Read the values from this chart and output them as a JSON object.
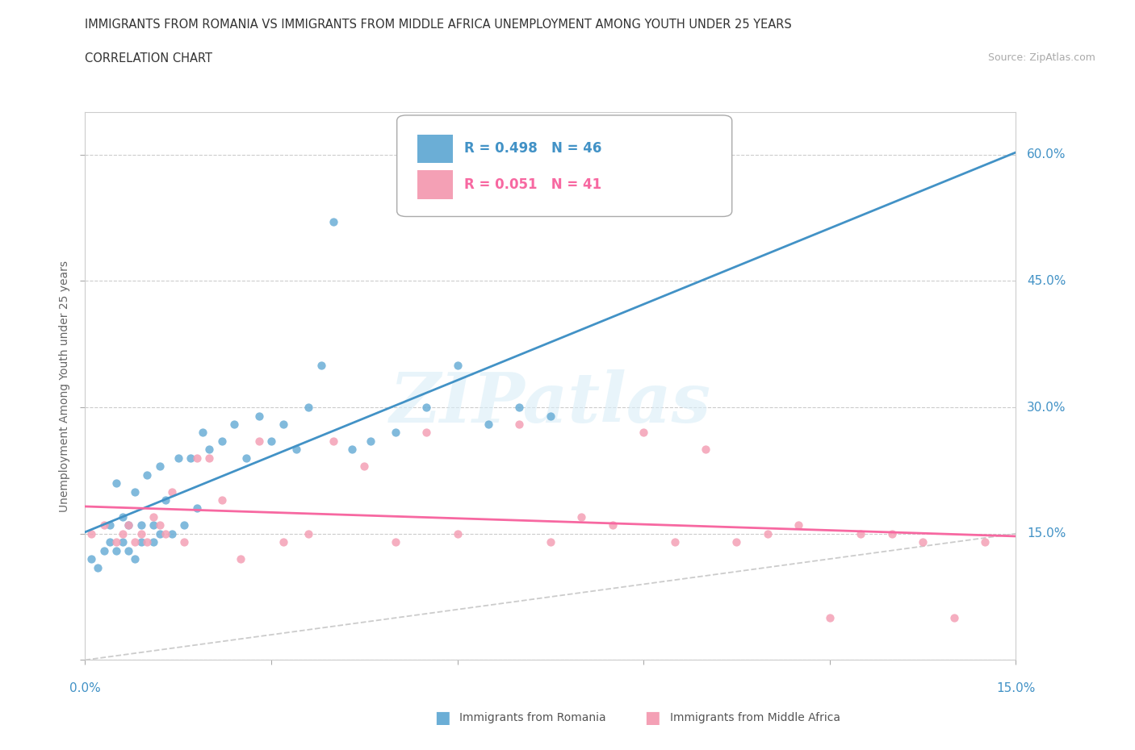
{
  "title_line1": "IMMIGRANTS FROM ROMANIA VS IMMIGRANTS FROM MIDDLE AFRICA UNEMPLOYMENT AMONG YOUTH UNDER 25 YEARS",
  "title_line2": "CORRELATION CHART",
  "source_text": "Source: ZipAtlas.com",
  "ylabel_label": "Unemployment Among Youth under 25 years",
  "legend_label1": "Immigrants from Romania",
  "legend_label2": "Immigrants from Middle Africa",
  "romania_color": "#6baed6",
  "midafrica_color": "#f4a0b5",
  "romania_line_color": "#4292c6",
  "midafrica_line_color": "#f768a1",
  "diagonal_color": "#cccccc",
  "xmax": 0.15,
  "ymax": 0.65,
  "romania_R": 0.498,
  "romania_N": 46,
  "midafrica_R": 0.051,
  "midafrica_N": 41,
  "romania_scatter_x": [
    0.001,
    0.002,
    0.003,
    0.004,
    0.004,
    0.005,
    0.005,
    0.006,
    0.006,
    0.007,
    0.007,
    0.008,
    0.008,
    0.009,
    0.009,
    0.01,
    0.011,
    0.011,
    0.012,
    0.012,
    0.013,
    0.014,
    0.015,
    0.016,
    0.017,
    0.018,
    0.019,
    0.02,
    0.022,
    0.024,
    0.026,
    0.028,
    0.03,
    0.032,
    0.034,
    0.036,
    0.038,
    0.04,
    0.043,
    0.046,
    0.05,
    0.055,
    0.06,
    0.065,
    0.07,
    0.075
  ],
  "romania_scatter_y": [
    0.12,
    0.11,
    0.13,
    0.14,
    0.16,
    0.13,
    0.21,
    0.14,
    0.17,
    0.13,
    0.16,
    0.12,
    0.2,
    0.14,
    0.16,
    0.22,
    0.14,
    0.16,
    0.23,
    0.15,
    0.19,
    0.15,
    0.24,
    0.16,
    0.24,
    0.18,
    0.27,
    0.25,
    0.26,
    0.28,
    0.24,
    0.29,
    0.26,
    0.28,
    0.25,
    0.3,
    0.35,
    0.52,
    0.25,
    0.26,
    0.27,
    0.3,
    0.35,
    0.28,
    0.3,
    0.29
  ],
  "midafrica_scatter_x": [
    0.001,
    0.003,
    0.005,
    0.006,
    0.007,
    0.008,
    0.009,
    0.01,
    0.011,
    0.012,
    0.013,
    0.014,
    0.016,
    0.018,
    0.02,
    0.022,
    0.025,
    0.028,
    0.032,
    0.036,
    0.04,
    0.045,
    0.05,
    0.055,
    0.06,
    0.07,
    0.075,
    0.08,
    0.085,
    0.09,
    0.095,
    0.1,
    0.105,
    0.11,
    0.115,
    0.12,
    0.125,
    0.13,
    0.135,
    0.14,
    0.145
  ],
  "midafrica_scatter_y": [
    0.15,
    0.16,
    0.14,
    0.15,
    0.16,
    0.14,
    0.15,
    0.14,
    0.17,
    0.16,
    0.15,
    0.2,
    0.14,
    0.24,
    0.24,
    0.19,
    0.12,
    0.26,
    0.14,
    0.15,
    0.26,
    0.23,
    0.14,
    0.27,
    0.15,
    0.28,
    0.14,
    0.17,
    0.16,
    0.27,
    0.14,
    0.25,
    0.14,
    0.15,
    0.16,
    0.05,
    0.15,
    0.15,
    0.14,
    0.05,
    0.14
  ]
}
